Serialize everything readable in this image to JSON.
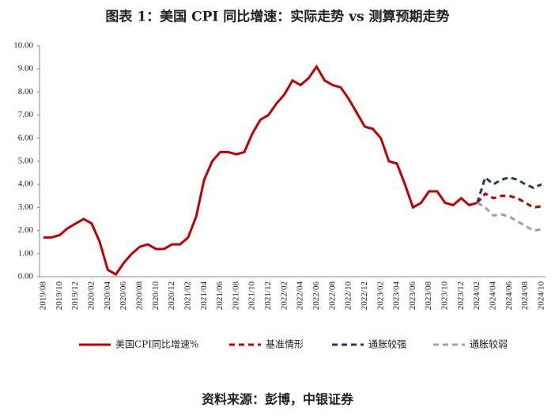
{
  "chart_data": {
    "type": "line",
    "title": "图表 1：美国 CPI 同比增速：实际走势 vs 测算预期走势",
    "source": "资料来源：彭博，中银证券",
    "categories": [
      "2019/08",
      null,
      "2019/10",
      null,
      "2019/12",
      null,
      "2020/02",
      null,
      "2020/04",
      null,
      "2020/06",
      null,
      "2020/08",
      null,
      "2020/10",
      null,
      "2020/12",
      null,
      "2021/02",
      null,
      "2021/04",
      null,
      "2021/06",
      null,
      "2021/08",
      null,
      "2021/10",
      null,
      "2021/12",
      null,
      "2022/02",
      null,
      "2022/04",
      null,
      "2022/06",
      null,
      "2022/08",
      null,
      "2022/10",
      null,
      "2022/12",
      null,
      "2023/02",
      null,
      "2023/04",
      null,
      "2023/06",
      null,
      "2023/08",
      null,
      "2023/10",
      null,
      "2023/12",
      null,
      "2024/02",
      null,
      "2024/04",
      null,
      "2024/06",
      null,
      "2024/08",
      null,
      "2024/10"
    ],
    "series": [
      {
        "name": "美国CPI同比增速%",
        "color": "#c00000",
        "dash": "solid",
        "values": [
          1.7,
          1.7,
          1.8,
          2.1,
          2.3,
          2.5,
          2.3,
          1.5,
          0.3,
          0.1,
          0.6,
          1.0,
          1.3,
          1.4,
          1.2,
          1.2,
          1.4,
          1.4,
          1.7,
          2.6,
          4.2,
          5.0,
          5.4,
          5.4,
          5.3,
          5.4,
          6.2,
          6.8,
          7.0,
          7.5,
          7.9,
          8.5,
          8.3,
          8.6,
          9.1,
          8.5,
          8.3,
          8.2,
          7.7,
          7.1,
          6.5,
          6.4,
          6.0,
          5.0,
          4.9,
          4.0,
          3.0,
          3.2,
          3.7,
          3.7,
          3.2,
          3.1,
          3.4,
          3.1,
          3.2,
          null,
          null,
          null,
          null,
          null,
          null,
          null,
          null
        ]
      },
      {
        "name": "基准情形",
        "color": "#c00000",
        "dash": "dash",
        "values": [
          null,
          null,
          null,
          null,
          null,
          null,
          null,
          null,
          null,
          null,
          null,
          null,
          null,
          null,
          null,
          null,
          null,
          null,
          null,
          null,
          null,
          null,
          null,
          null,
          null,
          null,
          null,
          null,
          null,
          null,
          null,
          null,
          null,
          null,
          null,
          null,
          null,
          null,
          null,
          null,
          null,
          null,
          null,
          null,
          null,
          null,
          null,
          null,
          null,
          null,
          null,
          null,
          null,
          null,
          3.2,
          3.6,
          3.4,
          3.5,
          3.5,
          3.4,
          3.2,
          3.0,
          3.05
        ]
      },
      {
        "name": "通胀较强",
        "color": "#1f3864",
        "dash": "dash",
        "values": [
          null,
          null,
          null,
          null,
          null,
          null,
          null,
          null,
          null,
          null,
          null,
          null,
          null,
          null,
          null,
          null,
          null,
          null,
          null,
          null,
          null,
          null,
          null,
          null,
          null,
          null,
          null,
          null,
          null,
          null,
          null,
          null,
          null,
          null,
          null,
          null,
          null,
          null,
          null,
          null,
          null,
          null,
          null,
          null,
          null,
          null,
          null,
          null,
          null,
          null,
          null,
          null,
          null,
          null,
          3.2,
          4.3,
          4.0,
          4.2,
          4.3,
          4.2,
          4.0,
          3.85,
          4.0
        ]
      },
      {
        "name": "通胀较弱",
        "color": "#a0a0a0",
        "dash": "dash",
        "values": [
          null,
          null,
          null,
          null,
          null,
          null,
          null,
          null,
          null,
          null,
          null,
          null,
          null,
          null,
          null,
          null,
          null,
          null,
          null,
          null,
          null,
          null,
          null,
          null,
          null,
          null,
          null,
          null,
          null,
          null,
          null,
          null,
          null,
          null,
          null,
          null,
          null,
          null,
          null,
          null,
          null,
          null,
          null,
          null,
          null,
          null,
          null,
          null,
          null,
          null,
          null,
          null,
          null,
          null,
          3.2,
          3.0,
          2.65,
          2.7,
          2.6,
          2.4,
          2.2,
          2.0,
          2.05
        ]
      }
    ],
    "ylim": [
      0,
      10
    ],
    "yticks": [
      {
        "value": 0,
        "label": "0.00"
      },
      {
        "value": 1,
        "label": "1.00"
      },
      {
        "value": 2,
        "label": "2.00"
      },
      {
        "value": 3,
        "label": "3.00"
      },
      {
        "value": 4,
        "label": "4.00"
      },
      {
        "value": 5,
        "label": "5.00"
      },
      {
        "value": 6,
        "label": "6.00"
      },
      {
        "value": 7,
        "label": "7.00"
      },
      {
        "value": 8,
        "label": "8.00"
      },
      {
        "value": 9,
        "label": "9.00"
      },
      {
        "value": 10,
        "label": "10.00"
      }
    ],
    "grid": false,
    "legend": "bottom"
  }
}
